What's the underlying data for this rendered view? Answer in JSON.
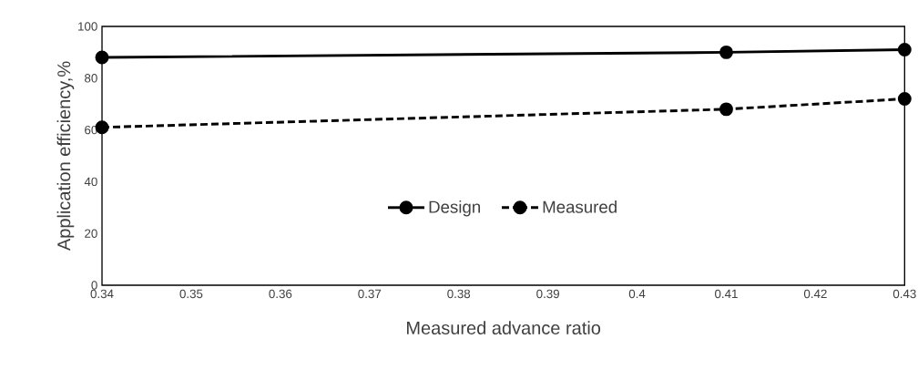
{
  "chart_data": {
    "type": "line",
    "xlabel": "Measured advance ratio",
    "ylabel": "Application efficiency,%",
    "x": [
      0.34,
      0.41,
      0.43
    ],
    "series": [
      {
        "name": "Design",
        "color": "#000000",
        "line_style": "solid",
        "values": [
          88,
          90,
          91
        ]
      },
      {
        "name": "Measured",
        "color": "#000000",
        "line_style": "dashed",
        "values": [
          61,
          68,
          72
        ]
      }
    ],
    "xlim": [
      0.34,
      0.43
    ],
    "xticks": [
      0.34,
      0.35,
      0.36,
      0.37,
      0.38,
      0.39,
      {
        "value": 0.4,
        "label": "0.4"
      },
      0.41,
      0.42,
      0.43
    ],
    "ylim": [
      0,
      100
    ],
    "yticks": [
      0,
      20,
      40,
      60,
      80,
      100
    ],
    "marker": "circle",
    "legend": "center",
    "grid": false
  }
}
